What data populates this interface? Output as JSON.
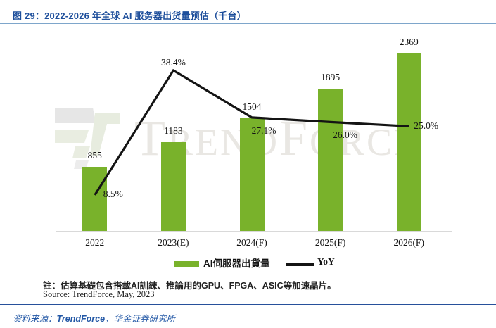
{
  "header": {
    "figure_title": "图 29：2022-2026 年全球 AI 服务器出货量预估（千台）"
  },
  "watermark": {
    "big1": "T",
    "small1": "REND",
    "big2": "F",
    "small2": "ORCE"
  },
  "chart_data": {
    "type": "bar",
    "combo": "bar+line",
    "title": "2022-2026 年全球 AI 服务器出货量预估（千台）",
    "categories": [
      "2022",
      "2023(E)",
      "2024(F)",
      "2025(F)",
      "2026(F)"
    ],
    "series": [
      {
        "name": "AI伺服器出貨量",
        "type": "bar",
        "axis": "left",
        "color": "#79b22b",
        "values": [
          855,
          1183,
          1504,
          1895,
          2369
        ],
        "labels": [
          "855",
          "1183",
          "1504",
          "1895",
          "2369"
        ]
      },
      {
        "name": "YoY",
        "type": "line",
        "axis": "right",
        "color": "#141414",
        "unit": "%",
        "values": [
          8.5,
          38.4,
          27.1,
          26.0,
          25.0
        ],
        "labels": [
          "8.5%",
          "38.4%",
          "27.1%",
          "26.0%",
          "25.0%"
        ]
      }
    ],
    "legend_position": "bottom",
    "grid": false,
    "ylim_left": [
      0,
      2500
    ],
    "ylim_right_pct": [
      0,
      45
    ]
  },
  "notes": {
    "note": "註：估算基礎包含搭載AI訓練、推論用的GPU、FPGA、ASIC等加速晶片。",
    "source_en": "Source: TrendForce, May, 2023"
  },
  "footer": {
    "prefix": "资料来源：",
    "brand": "TrendForce",
    "suffix": "，华金证券研究所"
  },
  "colors": {
    "bar_green": "#79b22b",
    "line_black": "#141414",
    "title_blue": "#1d4e9b",
    "rule_light_blue": "#7ea6cb",
    "footer_blue": "#2257a5",
    "watermark_gray": "#e9e7e3",
    "axis_gray": "#d9d9d9"
  }
}
